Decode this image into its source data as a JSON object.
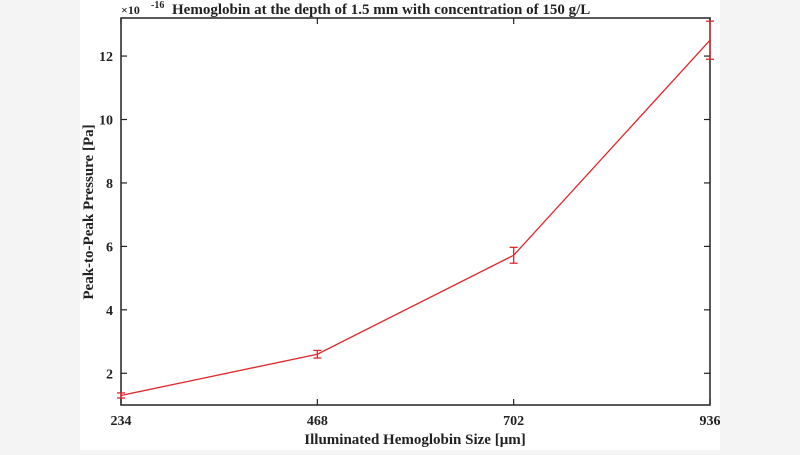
{
  "chart_data": {
    "type": "line",
    "title": "Hemoglobin at the depth of 1.5 mm with concentration of 150 g/L",
    "xlabel": "Illuminated Hemoglobin Size [μm]",
    "ylabel": "Peak-to-Peak Pressure [Pa]",
    "y_multiplier_base": "×10",
    "y_multiplier_exponent": "-16",
    "x": [
      234,
      468,
      702,
      936
    ],
    "x_ticks": [
      "234",
      "468",
      "702",
      "936"
    ],
    "y_ticks": [
      "2",
      "4",
      "6",
      "8",
      "10",
      "12"
    ],
    "y_tick_values": [
      2,
      4,
      6,
      8,
      10,
      12
    ],
    "xlim": [
      234,
      936
    ],
    "ylim": [
      1,
      13.2
    ],
    "grid": false,
    "series": [
      {
        "values": [
          1.3,
          2.6,
          5.72,
          12.5
        ],
        "error": [
          0.08,
          0.12,
          0.25,
          0.6
        ],
        "color": "#e3262a"
      }
    ]
  }
}
